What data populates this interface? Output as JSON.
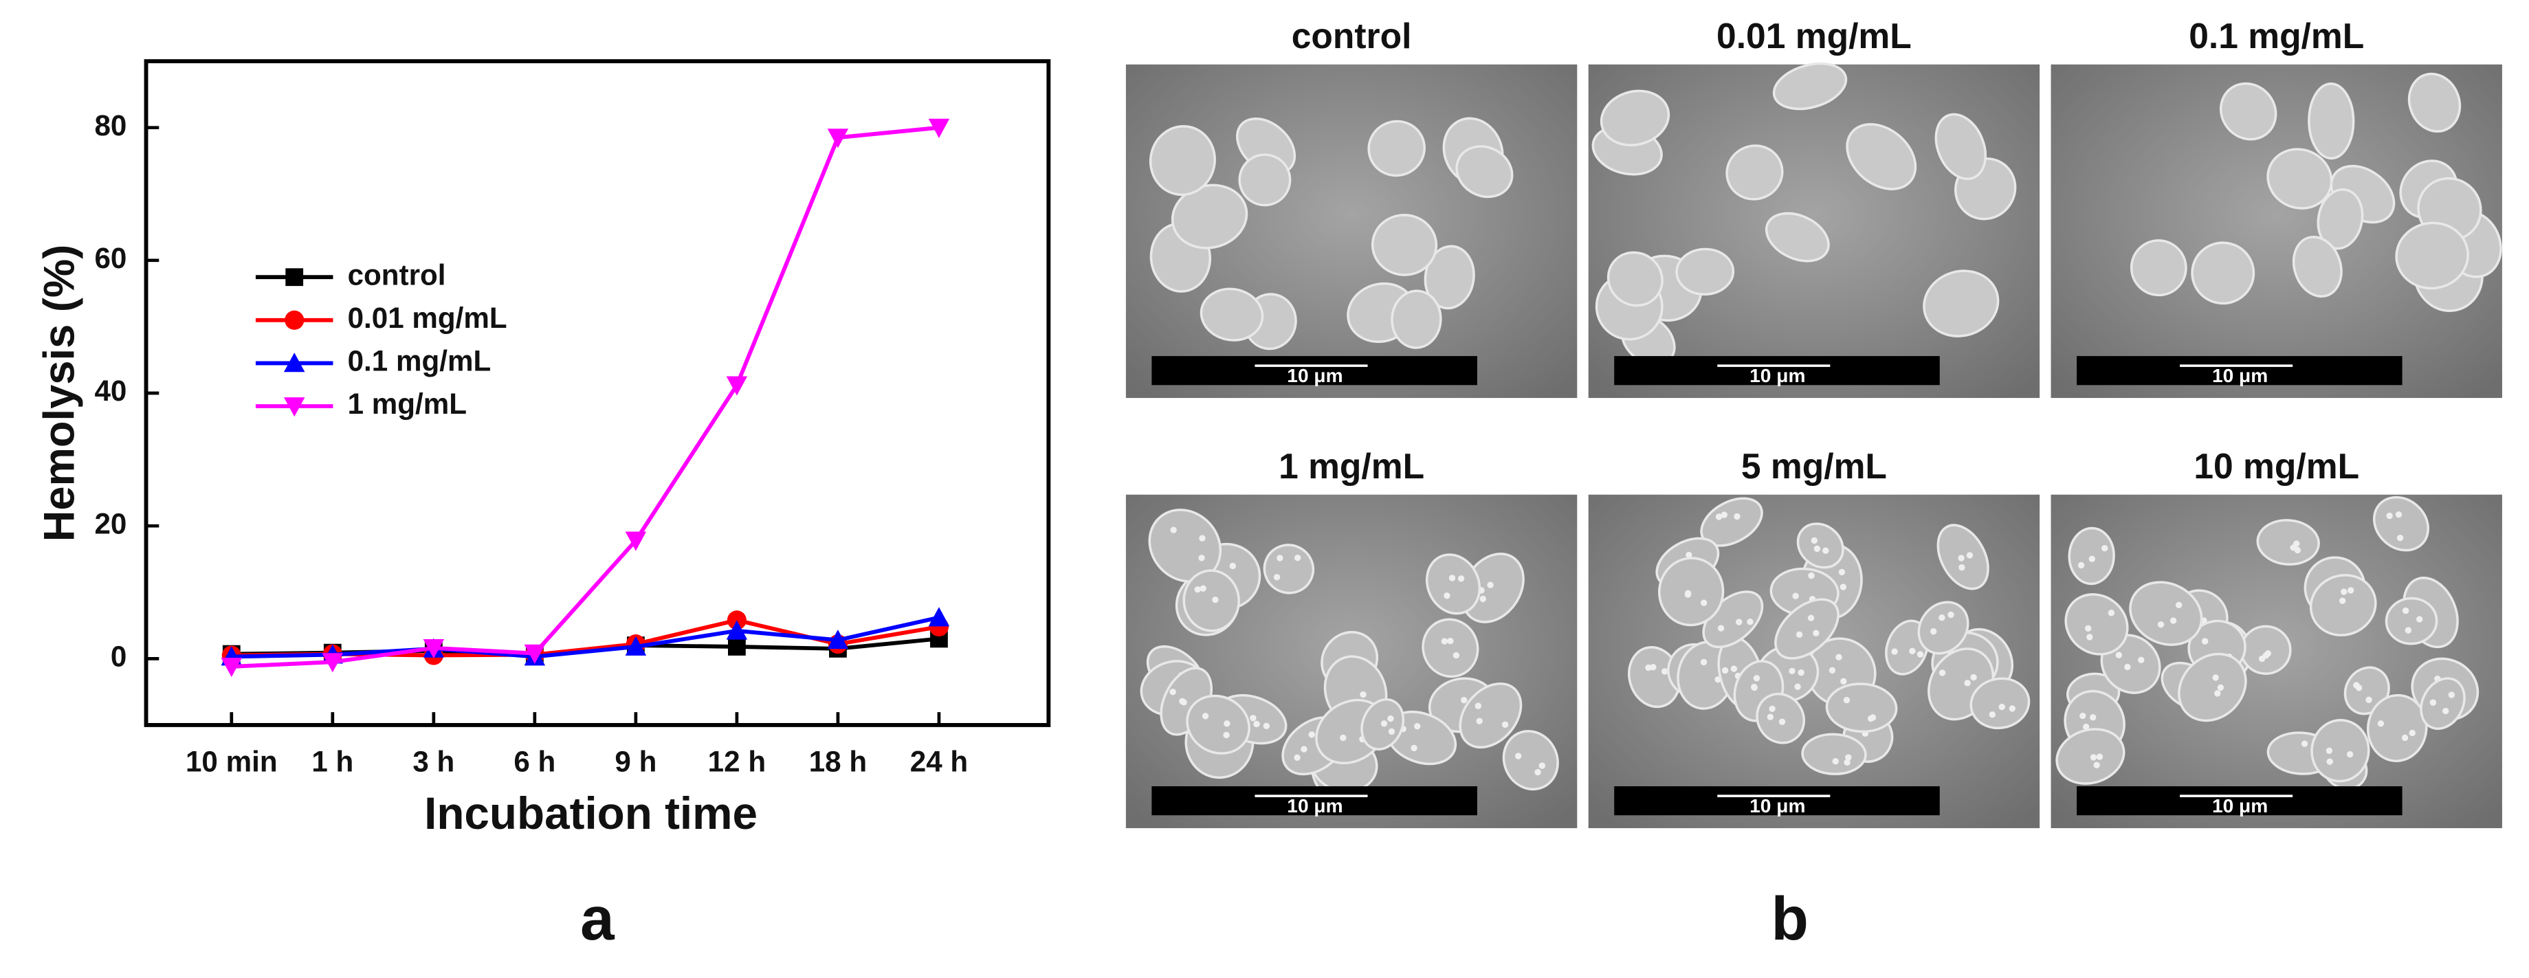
{
  "chart_data": {
    "type": "line",
    "y_label": "Hemolysis (%)",
    "x_label": "Incubation time",
    "categories": [
      "10 min",
      "1 h",
      "3 h",
      "6 h",
      "9 h",
      "12 h",
      "18 h",
      "24 h"
    ],
    "series": [
      {
        "name": "control",
        "color": "#000000",
        "marker": "square",
        "values": [
          0.7,
          0.9,
          1.2,
          0.5,
          2.0,
          1.8,
          1.5,
          3.0
        ]
      },
      {
        "name": "0.01 mg/mL",
        "color": "#ff0000",
        "marker": "circle",
        "values": [
          0.5,
          0.7,
          0.5,
          0.6,
          2.2,
          5.8,
          2.2,
          4.8
        ]
      },
      {
        "name": "0.1 mg/mL",
        "color": "#0000ff",
        "marker": "triangle-up",
        "values": [
          0.3,
          0.6,
          1.5,
          0.3,
          1.8,
          4.2,
          2.8,
          6.2
        ]
      },
      {
        "name": "1 mg/mL",
        "color": "#ff00ff",
        "marker": "triangle-down",
        "values": [
          -1.2,
          -0.5,
          1.6,
          0.8,
          17.8,
          41.2,
          78.5,
          80.0
        ]
      }
    ],
    "ylim": [
      -10,
      90
    ],
    "yticks": [
      0,
      20,
      40,
      60,
      80
    ],
    "grid": false,
    "legend": "left"
  },
  "panel_labels": [
    "a",
    "b"
  ],
  "micrographs": [
    {
      "label": "control",
      "scale_bar": "10 μm"
    },
    {
      "label": "0.01 mg/mL",
      "scale_bar": "10 μm"
    },
    {
      "label": "0.1 mg/mL",
      "scale_bar": "10 μm"
    },
    {
      "label": "1 mg/mL",
      "scale_bar": "10 μm"
    },
    {
      "label": "5 mg/mL",
      "scale_bar": "10 μm"
    },
    {
      "label": "10 mg/mL",
      "scale_bar": "10 μm"
    }
  ]
}
